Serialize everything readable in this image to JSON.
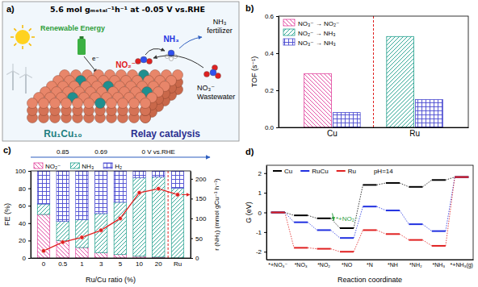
{
  "illustration": {
    "label": "a)",
    "headline": "5.6 mol gₘₑₜₐₗ⁻¹h⁻¹ at -0.05 V vs.RHE",
    "energy": "Renewable Energy",
    "electron": "e⁻",
    "fertilizer": [
      "NH₃",
      "fertilizer"
    ],
    "product": "NH₃",
    "intermediate": "NO₂⁻",
    "reactant": [
      "NO₃⁻",
      "Wastewater"
    ],
    "catalyst": "Ru₁Cu₁₀",
    "caption": "Relay catalysis"
  },
  "chart_data": [
    {
      "type": "bar",
      "title": "b)",
      "categories": [
        "Cu",
        "Ru"
      ],
      "y_label": "TOF (s⁻¹)",
      "ylim": [
        0,
        0.6
      ],
      "yticks": [
        {
          "value": 0,
          "label": "0.0"
        },
        0.2,
        0.4,
        0.6
      ],
      "legend": "top-left",
      "series": [
        {
          "name": "NO₃⁻ → NO₂⁻",
          "color": "#e0409c",
          "values": [
            0.29,
            null
          ]
        },
        {
          "name": "NO₂⁻ → NH₃",
          "color": "#1f9e8c",
          "values": [
            null,
            0.49
          ]
        },
        {
          "name": "NO₃⁻ → NH₃",
          "color": "#4a4ad0",
          "values": [
            0.08,
            0.15
          ]
        }
      ]
    },
    {
      "type": "bar",
      "stacked": true,
      "title": "c)",
      "categories": [
        "0",
        "0.5",
        "1",
        "3",
        "5",
        "10",
        "20",
        "Ru"
      ],
      "x_label": "Ru/Cu ratio (%)",
      "y_label": "FE (%)",
      "y2_label": "r (NH₃) (mmol gCu⁻¹ h⁻¹)",
      "ylim": [
        0,
        100
      ],
      "yticks": [
        0,
        20,
        40,
        60,
        80,
        100
      ],
      "y2lim": [
        0,
        220
      ],
      "y2ticks": [
        0,
        50,
        100,
        150,
        200
      ],
      "legend": "top",
      "annotations": [
        {
          "text": "0.85",
          "x": "0.5"
        },
        {
          "text": "0.69",
          "x": "3"
        },
        {
          "text": "0 V vs.RHE",
          "x": "20"
        }
      ],
      "series": [
        {
          "name": "NO₂⁻",
          "color": "#e0409c",
          "values": [
            50,
            20,
            12,
            6,
            4,
            2,
            1,
            0
          ]
        },
        {
          "name": "NH₃",
          "color": "#1f9e8c",
          "values": [
            12,
            22,
            32,
            45,
            60,
            90,
            92,
            80
          ]
        },
        {
          "name": "H₂",
          "color": "#4a4ad0",
          "values": [
            38,
            58,
            56,
            49,
            36,
            8,
            7,
            20
          ]
        },
        {
          "type": "line",
          "axis": "y2",
          "color": "#e02020",
          "marker": "circle",
          "values": [
            18,
            40,
            52,
            70,
            100,
            165,
            175,
            160
          ]
        }
      ]
    },
    {
      "type": "energy",
      "title": "d)",
      "categories": [
        "*+NO₃⁻",
        "*NO₃",
        "*NO₂",
        "*NO",
        "*N",
        "*NH",
        "*NH₂",
        "*NH₃",
        "*+NH₃(g)"
      ],
      "x_label": "Reaction coordinate",
      "y_label": "G (eV)",
      "ylim": [
        -2.4,
        2.4
      ],
      "yticks": [
        -2,
        -1,
        0,
        1,
        2
      ],
      "legend": "top-left",
      "line_style": "dotted",
      "annotations": [
        {
          "text": "pH=14"
        },
        {
          "text": "*+NO₂⁻",
          "x": "*NO",
          "y": -0.45
        }
      ],
      "series": [
        {
          "name": "Cu",
          "color": "#000000",
          "values": [
            0,
            -0.15,
            -0.3,
            -0.8,
            1.4,
            1.5,
            1.3,
            1.65,
            1.8
          ]
        },
        {
          "name": "RuCu",
          "color": "#2030e0",
          "values": [
            0,
            -0.5,
            -0.9,
            -1.3,
            0.3,
            0.1,
            -0.6,
            -0.95,
            1.8
          ]
        },
        {
          "name": "Ru",
          "color": "#e02020",
          "values": [
            0,
            -1.8,
            -1.85,
            -2.0,
            -0.9,
            -1.1,
            -1.4,
            -1.7,
            1.8
          ]
        }
      ]
    }
  ]
}
